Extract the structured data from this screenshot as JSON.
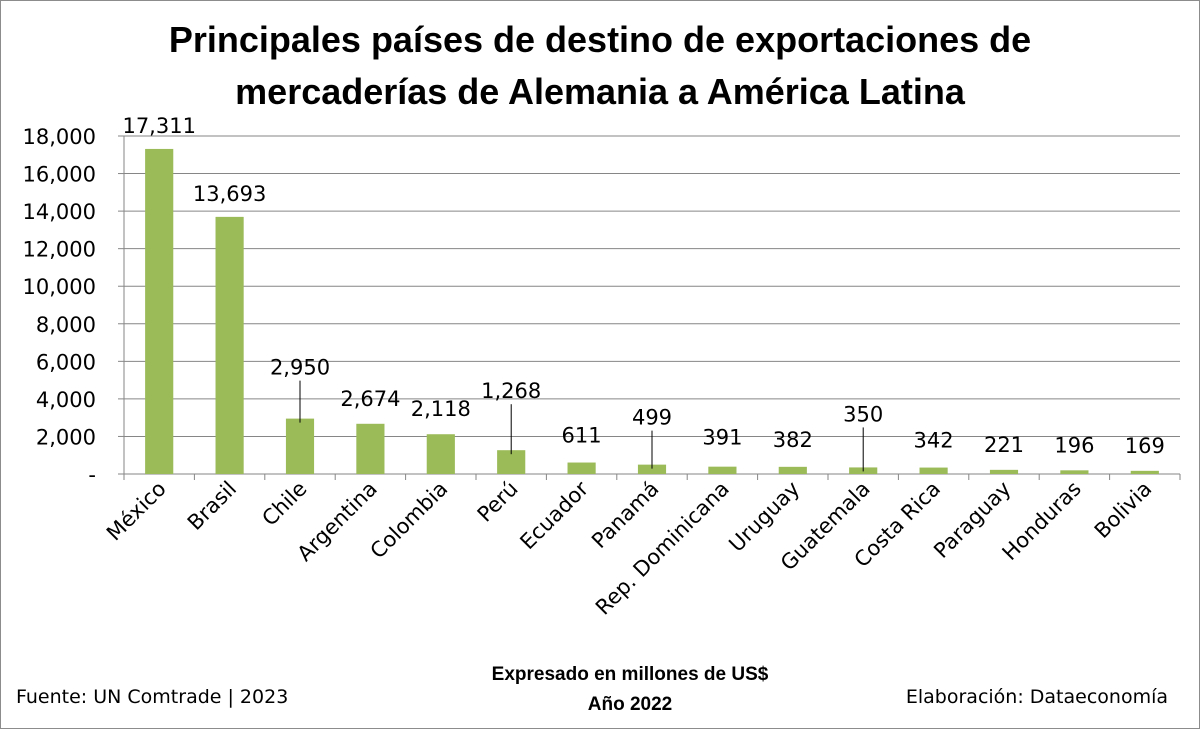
{
  "chart_data": {
    "type": "bar",
    "title_lines": [
      "Principales países de destino de exportaciones de",
      "mercaderías de Alemania a América Latina"
    ],
    "categories": [
      "México",
      "Brasil",
      "Chile",
      "Argentina",
      "Colombia",
      "Perú",
      "Ecuador",
      "Panamá",
      "Rep. Dominicana",
      "Uruguay",
      "Guatemala",
      "Costa Rica",
      "Paraguay",
      "Honduras",
      "Bolivia"
    ],
    "values": [
      17311,
      13693,
      2950,
      2674,
      2118,
      1268,
      611,
      499,
      391,
      382,
      350,
      342,
      221,
      196,
      169
    ],
    "data_labels": [
      "17,311",
      "13,693",
      "2,950",
      "2,674",
      "2,118",
      "1,268",
      "611",
      "499",
      "391",
      "382",
      "350",
      "342",
      "221",
      "196",
      "169"
    ],
    "y_ticks": [
      0,
      2000,
      4000,
      6000,
      8000,
      10000,
      12000,
      14000,
      16000,
      18000
    ],
    "y_tick_labels": [
      "-",
      "2,000",
      "4,000",
      "6,000",
      "8,000",
      "10,000",
      "12,000",
      "14,000",
      "16,000",
      "18,000"
    ],
    "ylim": [
      0,
      18000
    ],
    "grid": true,
    "legend": "none",
    "bar_color": "#9bbb59",
    "xlabel": "",
    "ylabel": ""
  },
  "subtitle": {
    "line1": "Expresado en millones de US$",
    "line2": "Año 2022"
  },
  "footer": {
    "source": "Fuente: UN Comtrade | 2023",
    "credit": "Elaboración: Dataeconomía"
  }
}
